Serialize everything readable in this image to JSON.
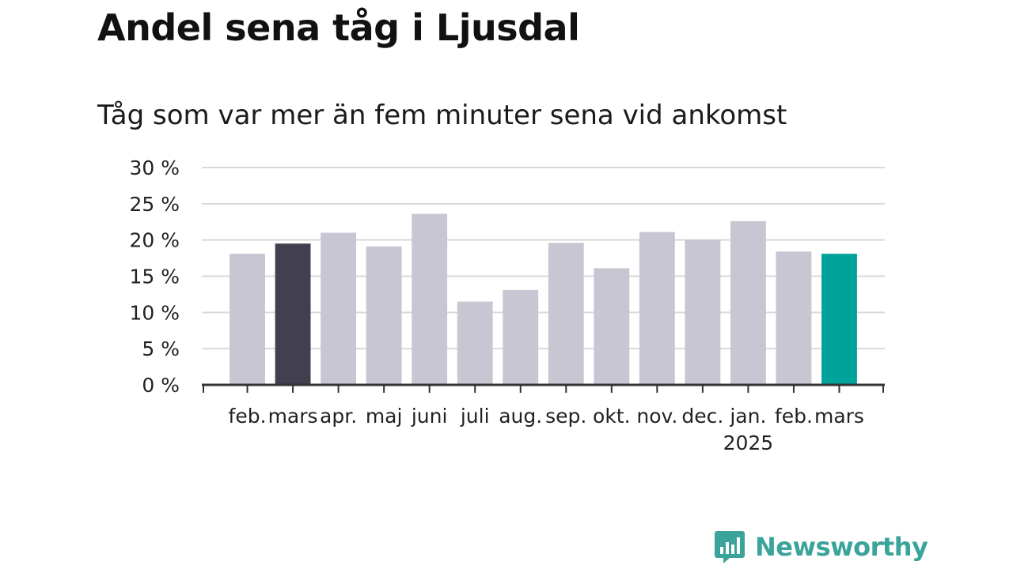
{
  "chart_data": {
    "type": "bar",
    "title": "Andel sena tåg i Ljusdal",
    "subtitle": "Tåg som var mer än fem minuter sena vid ankomst",
    "categories": [
      "feb.",
      "mars",
      "apr.",
      "maj",
      "juni",
      "juli",
      "aug.",
      "sep.",
      "okt.",
      "nov.",
      "dec.",
      "jan.",
      "feb.",
      "mars"
    ],
    "year_labels": [
      "",
      "",
      "",
      "",
      "",
      "",
      "",
      "",
      "",
      "",
      "",
      "2025",
      "",
      ""
    ],
    "values": [
      18.1,
      19.5,
      21.0,
      19.1,
      23.6,
      11.5,
      13.1,
      19.6,
      16.1,
      21.1,
      20.0,
      22.6,
      18.4,
      18.1
    ],
    "ylim": [
      0,
      30
    ],
    "yticks": [
      0,
      5,
      10,
      15,
      20,
      25,
      30
    ],
    "ytick_labels": [
      "0 %",
      "5 %",
      "10 %",
      "15 %",
      "20 %",
      "25 %",
      "30 %"
    ],
    "xlabel": "",
    "ylabel": "",
    "grid": true,
    "colors": {
      "default": "#c8c6d2",
      "highlight_previous": "#42404e",
      "highlight_current": "#00a39a"
    },
    "bar_colors": [
      "default",
      "highlight_previous",
      "default",
      "default",
      "default",
      "default",
      "default",
      "default",
      "default",
      "default",
      "default",
      "default",
      "default",
      "highlight_current"
    ]
  },
  "brand": {
    "name": "Newsworthy",
    "color": "#3aa39a",
    "icon": "newsworthy-logo-icon"
  }
}
